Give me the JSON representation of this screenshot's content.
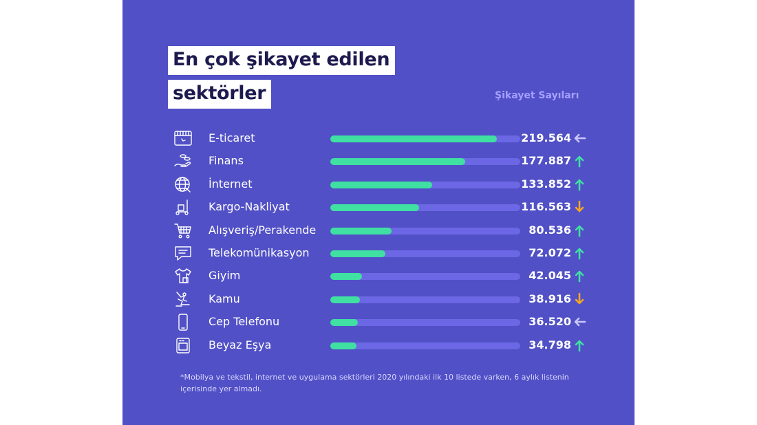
{
  "header": {
    "title_line1": "En çok şikayet edilen",
    "title_line2": "sektörler",
    "legend": "Şikayet Sayıları"
  },
  "colors": {
    "panel": "#5150c6",
    "bar": "#3fe0a1",
    "track": "#6c67e4",
    "up": "#3fe0a1",
    "down": "#f5a623",
    "same": "#c9c6ff"
  },
  "chart_data": {
    "type": "bar",
    "orientation": "horizontal",
    "categories": [
      "E-ticaret",
      "Finans",
      "İnternet",
      "Kargo-Nakliyat",
      "Alışveriş/Perakende",
      "Telekomünikasyon",
      "Giyim",
      "Kamu",
      "Cep Telefonu",
      "Beyaz Eşya"
    ],
    "values": [
      219564,
      177887,
      133852,
      116563,
      80536,
      72072,
      42045,
      38916,
      36520,
      34798
    ],
    "value_labels": [
      "219.564",
      "177.887",
      "133.852",
      "116.563",
      "80.536",
      "72.072",
      "42.045",
      "38.916",
      "36.520",
      "34.798"
    ],
    "trends": [
      "same",
      "up",
      "up",
      "down",
      "up",
      "up",
      "up",
      "down",
      "same",
      "up"
    ],
    "icons": [
      "storefront-icon",
      "coins-hand-icon",
      "globe-icon",
      "cargo-cart-icon",
      "shopping-cart-icon",
      "chat-bubble-icon",
      "shirt-icon",
      "official-desk-icon",
      "mobile-phone-icon",
      "oven-icon"
    ],
    "xlim": [
      0,
      250000
    ],
    "legend": "Şikayet Sayıları",
    "grid": false
  },
  "footnote": "*Mobilya ve tekstil, internet ve uygulama sektörleri 2020 yılındaki ilk 10 listede varken, 6 aylık listenin içerisinde yer almadı."
}
